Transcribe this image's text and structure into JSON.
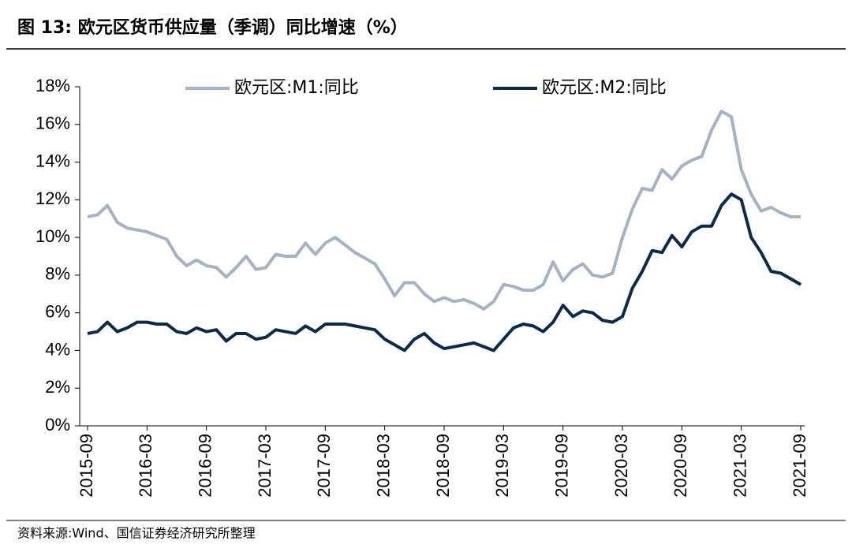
{
  "chart_data": {
    "type": "line",
    "title": "图 13: 欧元区货币供应量（季调）同比增速（%）",
    "source": "资料来源:Wind、国信证券经济研究所整理",
    "categories": [
      "2015-09",
      null,
      null,
      null,
      null,
      null,
      "2016-03",
      null,
      null,
      null,
      null,
      null,
      "2016-09",
      null,
      null,
      null,
      null,
      null,
      "2017-03",
      null,
      null,
      null,
      null,
      null,
      "2017-09",
      null,
      null,
      null,
      null,
      null,
      "2018-03",
      null,
      null,
      null,
      null,
      null,
      "2018-09",
      null,
      null,
      null,
      null,
      null,
      "2019-03",
      null,
      null,
      null,
      null,
      null,
      "2019-09",
      null,
      null,
      null,
      null,
      null,
      "2020-03",
      null,
      null,
      null,
      null,
      null,
      "2020-09",
      null,
      null,
      null,
      null,
      null,
      "2021-03",
      null,
      null,
      null,
      null,
      null,
      "2021-09"
    ],
    "series": [
      {
        "name": "欧元区:M1:同比",
        "color": "#a3b3c5",
        "values": [
          11.1,
          11.2,
          11.7,
          10.8,
          10.5,
          10.4,
          10.3,
          10.1,
          9.9,
          9.0,
          8.5,
          8.8,
          8.5,
          8.4,
          7.9,
          8.4,
          9.0,
          8.3,
          8.4,
          9.1,
          9.0,
          9.0,
          9.7,
          9.1,
          9.7,
          10.0,
          9.6,
          9.2,
          8.9,
          8.6,
          7.8,
          6.9,
          7.6,
          7.6,
          7.0,
          6.6,
          6.8,
          6.6,
          6.7,
          6.5,
          6.2,
          6.6,
          7.5,
          7.4,
          7.2,
          7.2,
          7.5,
          8.7,
          7.7,
          8.3,
          8.6,
          8.0,
          7.9,
          8.1,
          10.0,
          11.5,
          12.6,
          12.5,
          13.6,
          13.1,
          13.8,
          14.1,
          14.3,
          15.7,
          16.7,
          16.4,
          13.6,
          12.3,
          11.4,
          11.6,
          11.3,
          11.1,
          11.1
        ]
      },
      {
        "name": "欧元区:M2:同比",
        "color": "#0d2a4d",
        "values": [
          4.9,
          5.0,
          5.5,
          5.0,
          5.2,
          5.5,
          5.5,
          5.4,
          5.4,
          5.0,
          4.9,
          5.2,
          5.0,
          5.1,
          4.5,
          4.9,
          4.9,
          4.6,
          4.7,
          5.1,
          5.0,
          4.9,
          5.3,
          5.0,
          5.4,
          5.4,
          5.4,
          5.3,
          5.2,
          5.1,
          4.6,
          4.3,
          4.0,
          4.6,
          4.9,
          4.4,
          4.1,
          4.2,
          4.3,
          4.4,
          4.2,
          4.0,
          4.6,
          5.2,
          5.4,
          5.3,
          5.0,
          5.5,
          6.4,
          5.8,
          6.1,
          6.0,
          5.6,
          5.5,
          5.8,
          7.3,
          8.2,
          9.3,
          9.2,
          10.1,
          9.5,
          10.3,
          10.6,
          10.6,
          11.7,
          12.3,
          12.0,
          10.0,
          9.2,
          8.2,
          8.1,
          7.8,
          7.5
        ]
      }
    ],
    "ylim": [
      0,
      18
    ],
    "yticks": [
      {
        "value": 0,
        "label": "0%"
      },
      {
        "value": 2,
        "label": "2%"
      },
      {
        "value": 4,
        "label": "4%"
      },
      {
        "value": 6,
        "label": "6%"
      },
      {
        "value": 8,
        "label": "8%"
      },
      {
        "value": 10,
        "label": "10%"
      },
      {
        "value": 12,
        "label": "12%"
      },
      {
        "value": 14,
        "label": "14%"
      },
      {
        "value": 16,
        "label": "16%"
      },
      {
        "value": 18,
        "label": "18%"
      }
    ],
    "grid": false
  }
}
